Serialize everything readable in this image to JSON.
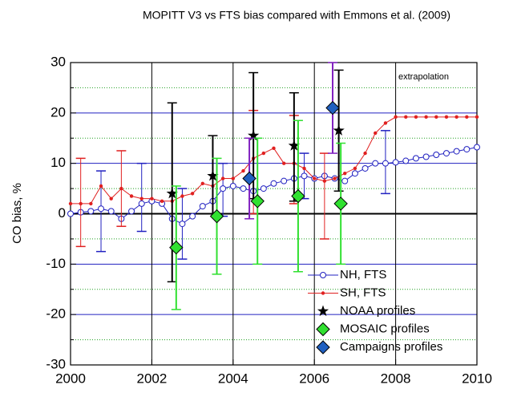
{
  "chart_data": {
    "type": "scatter",
    "title": "MOPITT V3 vs FTS bias compared with Emmons et al. (2009)",
    "y_label": "CO bias, %",
    "annotation": "extrapolation",
    "xlim": [
      2000,
      2010
    ],
    "xticks": [
      2000,
      2002,
      2004,
      2006,
      2008,
      2010
    ],
    "ylim": [
      -30,
      30
    ],
    "yticks": [
      -30,
      -20,
      -10,
      0,
      10,
      20,
      30
    ],
    "minor_yticks": [
      -25,
      -15,
      -5,
      5,
      15,
      25
    ],
    "grid": true,
    "series": [
      {
        "name": "NH, FTS",
        "color": "#2020c0",
        "marker": "open-circle",
        "line": true,
        "x": [
          2000,
          2000.25,
          2000.5,
          2000.75,
          2001,
          2001.25,
          2001.5,
          2001.75,
          2002,
          2002.25,
          2002.5,
          2002.75,
          2003,
          2003.25,
          2003.5,
          2003.75,
          2004,
          2004.25,
          2004.5,
          2004.75,
          2005,
          2005.25,
          2005.5,
          2005.75,
          2006,
          2006.25,
          2006.5,
          2006.75,
          2007,
          2007.25,
          2007.5,
          2007.75,
          2008,
          2008.25,
          2008.5,
          2008.75,
          2009,
          2009.25,
          2009.5,
          2009.75,
          2010
        ],
        "values": [
          0,
          0.3,
          0.5,
          1,
          0.5,
          -1,
          0.5,
          2,
          2.5,
          2,
          -1,
          -2,
          -0.5,
          1.5,
          2.5,
          5,
          5.5,
          5,
          4.5,
          5,
          6,
          6.5,
          7,
          7.5,
          7,
          7.5,
          7,
          6.5,
          8,
          9,
          10,
          10,
          10.2,
          10.5,
          11,
          11.3,
          11.7,
          12,
          12.4,
          12.8,
          13.2
        ],
        "error_x": [
          2000.75,
          2001.75,
          2002.75,
          2003.75,
          2005.75,
          2007.75
        ],
        "error_low": [
          -7.5,
          -3.5,
          -9,
          -0.5,
          3,
          4
        ],
        "error_high": [
          8.5,
          10,
          5,
          10,
          12,
          16.5
        ]
      },
      {
        "name": "SH, FTS",
        "color": "#e02020",
        "marker": "dot",
        "line": true,
        "x": [
          2000,
          2000.25,
          2000.5,
          2000.75,
          2001,
          2001.25,
          2001.5,
          2001.75,
          2002,
          2002.25,
          2002.5,
          2002.75,
          2003,
          2003.25,
          2003.5,
          2003.75,
          2004,
          2004.25,
          2004.5,
          2004.75,
          2005,
          2005.25,
          2005.5,
          2005.75,
          2006,
          2006.25,
          2006.5,
          2006.75,
          2007,
          2007.25,
          2007.5,
          2007.75,
          2008,
          2008.25,
          2008.5,
          2008.75,
          2009,
          2009.25,
          2009.5,
          2009.75,
          2010
        ],
        "values": [
          2,
          2,
          2,
          5.5,
          3,
          5,
          3.5,
          3,
          3,
          2.5,
          2.5,
          3.5,
          4,
          6,
          5.5,
          7,
          7,
          8.5,
          11,
          12,
          13,
          10,
          10,
          9,
          7,
          6.5,
          7,
          8,
          9,
          12,
          16,
          18,
          19.2,
          19.2,
          19.2,
          19.2,
          19.2,
          19.2,
          19.2,
          19.2,
          19.2
        ],
        "error_x": [
          2000.25,
          2001.25,
          2004.5,
          2005.5,
          2006.25
        ],
        "error_low": [
          -6.5,
          -2.5,
          0,
          2,
          -5
        ],
        "error_high": [
          11,
          12.5,
          20.5,
          19.5,
          12
        ]
      },
      {
        "name": "NOAA profiles",
        "color": "#000000",
        "marker": "star",
        "x": [
          2002.5,
          2003.5,
          2004.5,
          2005.5,
          2006.6
        ],
        "values": [
          4,
          7.5,
          15.5,
          13.5,
          16.5
        ],
        "error_x": [
          2002.5,
          2003.5,
          2004.5,
          2005.5,
          2006.6
        ],
        "error_low": [
          -13.5,
          0,
          3,
          2.5,
          4.5
        ],
        "error_high": [
          22,
          15.5,
          28,
          24,
          28.5
        ]
      },
      {
        "name": "MOSAIC profiles",
        "color": "#30e030",
        "marker": "diamond",
        "x": [
          2002.6,
          2003.6,
          2004.6,
          2005.6,
          2006.65
        ],
        "values": [
          -6.7,
          -0.5,
          2.5,
          3.5,
          2
        ],
        "error_x": [
          2002.6,
          2003.6,
          2004.6,
          2005.6,
          2006.65
        ],
        "error_low": [
          -19,
          -12,
          -10,
          -11.5,
          -10
        ],
        "error_high": [
          5.5,
          11,
          15,
          18.5,
          14
        ]
      },
      {
        "name": "Campaigns profiles",
        "color": "#2060c0",
        "marker": "diamond",
        "x": [
          2004.4,
          2006.45
        ],
        "values": [
          7,
          21
        ],
        "error_x": [
          2004.4,
          2006.45
        ],
        "error_low": [
          -1,
          12
        ],
        "error_high": [
          15,
          30
        ]
      }
    ]
  }
}
